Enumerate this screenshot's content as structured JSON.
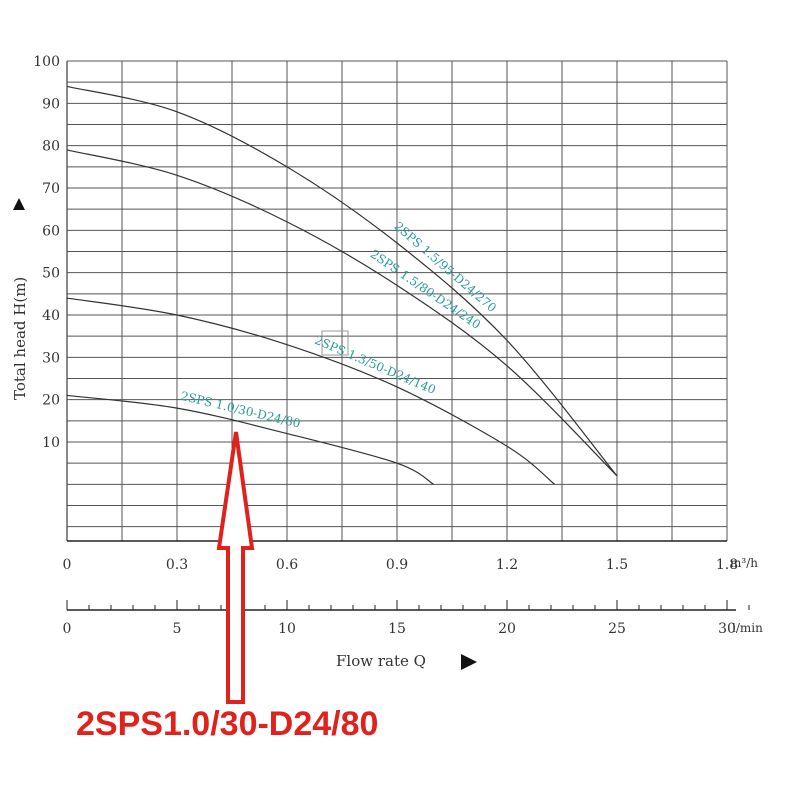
{
  "chart_data": {
    "type": "line",
    "xlabel": "Flow rate Q",
    "ylabel": "Total head H(m)",
    "x_unit_primary": "m³/h",
    "x_unit_secondary": "l/min",
    "xlim": [
      0,
      1.8
    ],
    "ylim": [
      0,
      100
    ],
    "x_ticks": [
      "0",
      "0.3",
      "0.6",
      "0.9",
      "1.2",
      "1.5",
      "1.8"
    ],
    "x2_ticks": [
      "0",
      "5",
      "10",
      "15",
      "20",
      "25",
      "30"
    ],
    "y_ticks": [
      "10",
      "20",
      "30",
      "40",
      "50",
      "60",
      "70",
      "80",
      "90",
      "100"
    ],
    "grid": true,
    "series": [
      {
        "name": "2SPS 1.5/95-D24/270",
        "x": [
          0,
          0.3,
          0.6,
          0.9,
          1.2,
          1.5
        ],
        "y": [
          94,
          88,
          75,
          57,
          34,
          2
        ]
      },
      {
        "name": "2SPS 1.5/80-D24/240",
        "x": [
          0,
          0.3,
          0.6,
          0.9,
          1.2,
          1.5
        ],
        "y": [
          79,
          73,
          62,
          47,
          28,
          2
        ]
      },
      {
        "name": "2SPS 1.3/50-D24/140",
        "x": [
          0,
          0.3,
          0.6,
          0.9,
          1.2,
          1.33
        ],
        "y": [
          44,
          40,
          33,
          23,
          9,
          0
        ]
      },
      {
        "name": "2SPS 1.0/30-D24/80",
        "x": [
          0,
          0.3,
          0.6,
          0.9,
          1.0
        ],
        "y": [
          21,
          18,
          12,
          5,
          0
        ]
      }
    ],
    "annotation": "2SPS1.0/30-D24/80",
    "colors": {
      "curve": "#333333",
      "label": "#2a9a9a",
      "annotation": "#e0211c",
      "grid": "#555555"
    }
  }
}
